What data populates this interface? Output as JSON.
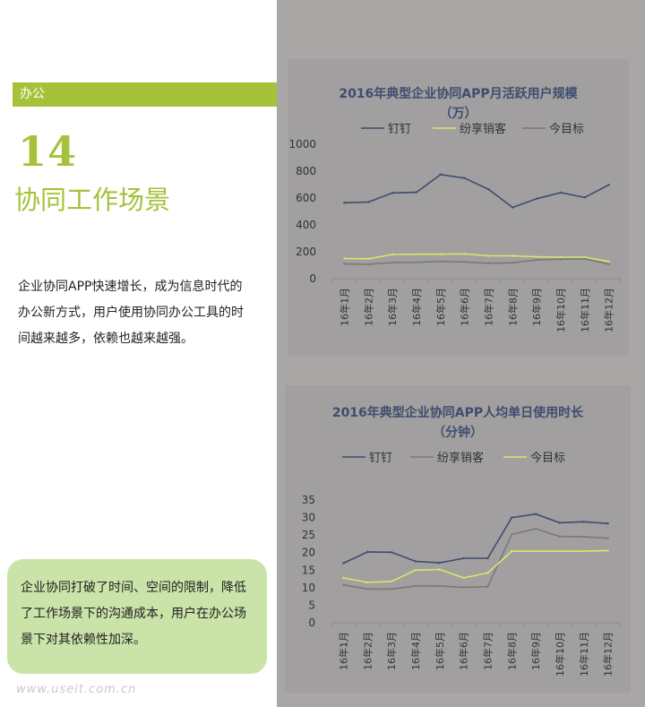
{
  "sidebar": {
    "section_label": "办公",
    "number": "14",
    "title": "协同工作场景",
    "intro": "企业协同APP快速增长，成为信息时代的办公新方式，用户使用协同办公工具的时间越来越多，依赖也越来越强。",
    "callout": "企业协同打破了时间、空间的限制，降低了工作场景下的沟通成本，用户在办公场景下对其依赖性加深。",
    "watermark": "www.useit.com.cn"
  },
  "chart_data": [
    {
      "type": "line",
      "title_line1": "2016年典型企业协同APP月活跃用户规模",
      "title_line2": "（万）",
      "categories": [
        "16年1月",
        "16年2月",
        "16年3月",
        "16年4月",
        "16年5月",
        "16年6月",
        "16年7月",
        "16年8月",
        "16年9月",
        "16年10月",
        "16年11月",
        "16年12月"
      ],
      "ylim": [
        0,
        1000
      ],
      "yticks": [
        0,
        200,
        400,
        600,
        800,
        1000
      ],
      "legend_position": "top",
      "series": [
        {
          "name": "钉钉",
          "color": "#3e4d6e",
          "values": [
            565,
            570,
            638,
            643,
            775,
            748,
            665,
            530,
            595,
            640,
            605,
            698
          ]
        },
        {
          "name": "纷享销客",
          "color": "#d6e86a",
          "values": [
            150,
            148,
            180,
            182,
            182,
            185,
            170,
            170,
            163,
            160,
            160,
            128
          ]
        },
        {
          "name": "今目标",
          "color": "#7a7878",
          "values": [
            110,
            107,
            120,
            122,
            128,
            125,
            115,
            118,
            140,
            145,
            148,
            108
          ]
        }
      ]
    },
    {
      "type": "line",
      "title_line1": "2016年典型企业协同APP人均单日使用时长",
      "title_line2": "（分钟）",
      "categories": [
        "16年1月",
        "16年2月",
        "16年3月",
        "16年4月",
        "16年5月",
        "16年6月",
        "16年7月",
        "16年8月",
        "16年9月",
        "16年10月",
        "16年11月",
        "16年12月"
      ],
      "ylim": [
        0,
        35
      ],
      "yticks": [
        0,
        5,
        10,
        15,
        20,
        25,
        30,
        35
      ],
      "legend_position": "top",
      "series": [
        {
          "name": "钉钉",
          "color": "#3e4d6e",
          "values": [
            17,
            20.2,
            20.1,
            17.5,
            17.1,
            18.4,
            18.4,
            30,
            31,
            28.5,
            28.8,
            28.3
          ]
        },
        {
          "name": "纷享销客",
          "color": "#7a7878",
          "values": [
            10.8,
            9.6,
            9.6,
            10.5,
            10.5,
            10.1,
            10.3,
            25.2,
            26.8,
            24.6,
            24.5,
            24.1
          ]
        },
        {
          "name": "今目标",
          "color": "#d6e86a",
          "values": [
            12.8,
            11.5,
            11.8,
            15,
            15.2,
            12.8,
            14.2,
            20.4,
            20.4,
            20.4,
            20.4,
            20.6
          ]
        }
      ]
    }
  ]
}
